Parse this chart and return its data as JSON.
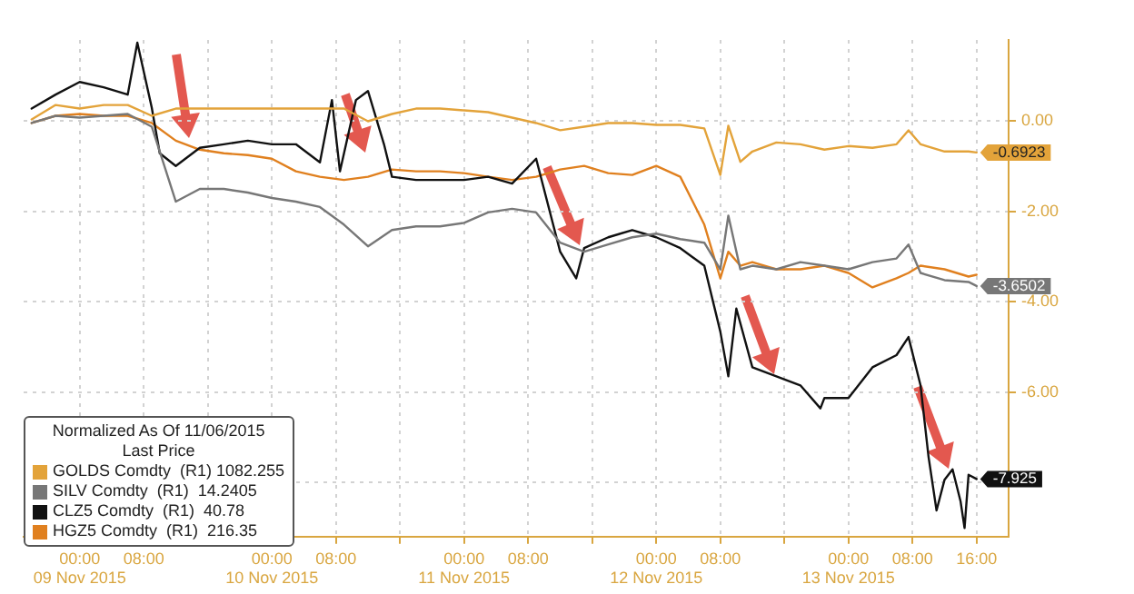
{
  "chart_data": {
    "type": "line",
    "legend_title": "Normalized As Of 11/06/2015\nLast Price",
    "legend": "bottom left",
    "grid": true,
    "marker": "none",
    "line_style": "solid",
    "xlim": [
      "2015-11-08T17:00",
      "2015-11-13T20:00"
    ],
    "xticks": [
      {
        "value": "2015-11-09T00:00",
        "label": "00:00\n09 Nov 2015"
      },
      {
        "value": "2015-11-09T08:00",
        "label": "08:00"
      },
      {
        "value": "2015-11-09T16:00",
        "label": null
      },
      {
        "value": "2015-11-10T00:00",
        "label": "00:00\n10 Nov 2015"
      },
      {
        "value": "2015-11-10T08:00",
        "label": "08:00"
      },
      {
        "value": "2015-11-10T16:00",
        "label": null
      },
      {
        "value": "2015-11-11T00:00",
        "label": "00:00\n11 Nov 2015"
      },
      {
        "value": "2015-11-11T08:00",
        "label": "08:00"
      },
      {
        "value": "2015-11-11T16:00",
        "label": null
      },
      {
        "value": "2015-11-12T00:00",
        "label": "00:00\n12 Nov 2015"
      },
      {
        "value": "2015-11-12T08:00",
        "label": "08:00"
      },
      {
        "value": "2015-11-12T16:00",
        "label": null
      },
      {
        "value": "2015-11-13T00:00",
        "label": "00:00\n13 Nov 2015"
      },
      {
        "value": "2015-11-13T08:00",
        "label": "08:00"
      },
      {
        "value": "2015-11-13T16:00",
        "label": "16:00"
      }
    ],
    "ylim": [
      -9.2,
      1.8
    ],
    "yticks": [
      {
        "value": 0,
        "label": "0.00"
      },
      {
        "value": -2,
        "label": "-2.00"
      },
      {
        "value": -4,
        "label": "-4.00"
      },
      {
        "value": -6,
        "label": "-6.00"
      },
      {
        "value": -8,
        "label": null
      }
    ],
    "series": [
      {
        "name": "GOLDS Comdty  (R1) 1082.255",
        "color": "#e3a33a",
        "x": [
          "2015-11-08T18:00",
          "2015-11-08T21:00",
          "2015-11-09T00:00",
          "2015-11-09T03:00",
          "2015-11-09T06:00",
          "2015-11-09T09:00",
          "2015-11-09T12:00",
          "2015-11-09T15:00",
          "2015-11-09T18:00",
          "2015-11-09T21:00",
          "2015-11-10T00:00",
          "2015-11-10T03:00",
          "2015-11-10T06:00",
          "2015-11-10T09:00",
          "2015-11-10T12:00",
          "2015-11-10T15:00",
          "2015-11-10T18:00",
          "2015-11-10T21:00",
          "2015-11-11T00:00",
          "2015-11-11T03:00",
          "2015-11-11T06:00",
          "2015-11-11T09:00",
          "2015-11-11T12:00",
          "2015-11-11T15:00",
          "2015-11-11T18:00",
          "2015-11-11T21:00",
          "2015-11-12T00:00",
          "2015-11-12T03:00",
          "2015-11-12T06:00",
          "2015-11-12T08:00",
          "2015-11-12T09:00",
          "2015-11-12T10:30",
          "2015-11-12T12:00",
          "2015-11-12T15:00",
          "2015-11-12T18:00",
          "2015-11-12T21:00",
          "2015-11-13T00:00",
          "2015-11-13T03:00",
          "2015-11-13T06:00",
          "2015-11-13T07:30",
          "2015-11-13T09:00",
          "2015-11-13T12:00",
          "2015-11-13T15:00",
          "2015-11-13T16:00"
        ],
        "values": [
          0.04,
          0.36,
          0.28,
          0.36,
          0.36,
          0.12,
          0.28,
          0.28,
          0.28,
          0.28,
          0.28,
          0.28,
          0.28,
          0.28,
          0,
          0.16,
          0.28,
          0.28,
          0.24,
          0.2,
          0.08,
          -0.04,
          -0.2,
          -0.12,
          -0.04,
          -0.04,
          -0.08,
          -0.08,
          -0.16,
          -1.19,
          -0.1,
          -0.9,
          -0.67,
          -0.47,
          -0.51,
          -0.63,
          -0.55,
          -0.59,
          -0.51,
          -0.2,
          -0.51,
          -0.67,
          -0.67,
          -0.6923
        ],
        "value_labels": [
          null,
          null,
          null,
          null,
          null,
          null,
          null,
          null,
          null,
          null,
          null,
          null,
          null,
          null,
          null,
          null,
          null,
          null,
          null,
          null,
          null,
          null,
          null,
          null,
          null,
          null,
          null,
          null,
          null,
          null,
          null,
          null,
          null,
          null,
          null,
          null,
          null,
          null,
          null,
          null,
          null,
          null,
          null,
          "-0.6923"
        ]
      },
      {
        "name": "SILV Comdty  (R1)  14.2405",
        "color": "#777777",
        "x": [
          "2015-11-08T18:00",
          "2015-11-08T21:00",
          "2015-11-09T00:00",
          "2015-11-09T03:00",
          "2015-11-09T06:00",
          "2015-11-09T09:00",
          "2015-11-09T12:00",
          "2015-11-09T15:00",
          "2015-11-09T18:00",
          "2015-11-09T21:00",
          "2015-11-10T00:00",
          "2015-11-10T03:00",
          "2015-11-10T06:00",
          "2015-11-10T09:00",
          "2015-11-10T12:00",
          "2015-11-10T15:00",
          "2015-11-10T18:00",
          "2015-11-10T21:00",
          "2015-11-11T00:00",
          "2015-11-11T03:00",
          "2015-11-11T06:00",
          "2015-11-11T09:00",
          "2015-11-11T12:00",
          "2015-11-11T15:00",
          "2015-11-11T18:00",
          "2015-11-11T21:00",
          "2015-11-12T00:00",
          "2015-11-12T03:00",
          "2015-11-12T06:00",
          "2015-11-12T08:00",
          "2015-11-12T09:00",
          "2015-11-12T10:30",
          "2015-11-12T12:00",
          "2015-11-12T15:00",
          "2015-11-12T18:00",
          "2015-11-12T21:00",
          "2015-11-13T00:00",
          "2015-11-13T03:00",
          "2015-11-13T06:00",
          "2015-11-13T07:30",
          "2015-11-13T09:00",
          "2015-11-13T12:00",
          "2015-11-13T15:00",
          "2015-11-13T16:00"
        ],
        "values": [
          -0.04,
          0.12,
          0.08,
          0.12,
          0.16,
          -0.12,
          -1.78,
          -1.5,
          -1.5,
          -1.58,
          -1.7,
          -1.78,
          -1.9,
          -2.29,
          -2.77,
          -2.41,
          -2.33,
          -2.33,
          -2.25,
          -2.02,
          -1.94,
          -2.02,
          -2.69,
          -2.89,
          -2.73,
          -2.57,
          -2.49,
          -2.61,
          -2.69,
          -3.28,
          -2.09,
          -3.28,
          -3.2,
          -3.28,
          -3.12,
          -3.2,
          -3.28,
          -3.12,
          -3.04,
          -2.73,
          -3.36,
          -3.52,
          -3.56,
          -3.6502
        ],
        "value_labels": [
          null,
          null,
          null,
          null,
          null,
          null,
          null,
          null,
          null,
          null,
          null,
          null,
          null,
          null,
          null,
          null,
          null,
          null,
          null,
          null,
          null,
          null,
          null,
          null,
          null,
          null,
          null,
          null,
          null,
          null,
          null,
          null,
          null,
          null,
          null,
          null,
          null,
          null,
          null,
          null,
          null,
          null,
          null,
          "-3.6502"
        ]
      },
      {
        "name": "CLZ5 Comdty  (R1)  40.78",
        "color": "#111111",
        "x": [
          "2015-11-08T18:00",
          "2015-11-08T21:00",
          "2015-11-09T00:00",
          "2015-11-09T03:00",
          "2015-11-09T06:00",
          "2015-11-09T07:12",
          "2015-11-09T09:00",
          "2015-11-09T10:00",
          "2015-11-09T12:00",
          "2015-11-09T15:00",
          "2015-11-09T18:00",
          "2015-11-09T21:00",
          "2015-11-10T00:00",
          "2015-11-10T03:00",
          "2015-11-10T06:00",
          "2015-11-10T07:30",
          "2015-11-10T08:30",
          "2015-11-10T10:30",
          "2015-11-10T12:00",
          "2015-11-10T14:00",
          "2015-11-10T15:00",
          "2015-11-10T18:00",
          "2015-11-10T21:00",
          "2015-11-11T00:00",
          "2015-11-11T03:00",
          "2015-11-11T06:00",
          "2015-11-11T09:00",
          "2015-11-11T12:00",
          "2015-11-11T14:00",
          "2015-11-11T15:00",
          "2015-11-11T18:00",
          "2015-11-11T21:00",
          "2015-11-12T00:00",
          "2015-11-12T03:00",
          "2015-11-12T06:00",
          "2015-11-12T08:00",
          "2015-11-12T09:00",
          "2015-11-12T10:00",
          "2015-11-12T12:00",
          "2015-11-12T15:00",
          "2015-11-12T18:00",
          "2015-11-12T20:30",
          "2015-11-12T21:00",
          "2015-11-13T00:00",
          "2015-11-13T03:00",
          "2015-11-13T06:00",
          "2015-11-13T07:30",
          "2015-11-13T09:00",
          "2015-11-13T10:00",
          "2015-11-13T11:00",
          "2015-11-13T12:00",
          "2015-11-13T13:00",
          "2015-11-13T14:00",
          "2015-11-13T14:30",
          "2015-11-13T15:00",
          "2015-11-13T16:00"
        ],
        "values": [
          0.28,
          0.59,
          0.87,
          0.75,
          0.59,
          1.74,
          0.3,
          -0.71,
          -0.99,
          -0.59,
          -0.51,
          -0.43,
          -0.51,
          -0.51,
          -0.91,
          0.47,
          -1.11,
          0.47,
          0.67,
          -0.51,
          -1.23,
          -1.3,
          -1.3,
          -1.3,
          -1.23,
          -1.38,
          -0.83,
          -2.89,
          -3.48,
          -2.81,
          -2.57,
          -2.41,
          -2.57,
          -2.81,
          -3.2,
          -4.66,
          -5.65,
          -4.15,
          -5.45,
          -5.65,
          -5.85,
          -6.36,
          -6.13,
          -6.13,
          -5.45,
          -5.18,
          -4.78,
          -5.85,
          -7.43,
          -8.62,
          -7.94,
          -7.71,
          -8.42,
          -9.01,
          -7.83,
          -7.925
        ],
        "value_labels": [
          null,
          null,
          null,
          null,
          null,
          null,
          null,
          null,
          null,
          null,
          null,
          null,
          null,
          null,
          null,
          null,
          null,
          null,
          null,
          null,
          null,
          null,
          null,
          null,
          null,
          null,
          null,
          null,
          null,
          null,
          null,
          null,
          null,
          null,
          null,
          null,
          null,
          null,
          null,
          null,
          null,
          null,
          null,
          null,
          null,
          null,
          null,
          null,
          null,
          null,
          null,
          null,
          null,
          null,
          null,
          "-7.925"
        ]
      },
      {
        "name": "HGZ5 Comdty  (R1)  216.35",
        "color": "#e0801f",
        "x": [
          "2015-11-08T18:00",
          "2015-11-08T21:00",
          "2015-11-09T00:00",
          "2015-11-09T03:00",
          "2015-11-09T06:00",
          "2015-11-09T09:00",
          "2015-11-09T12:00",
          "2015-11-09T15:00",
          "2015-11-09T18:00",
          "2015-11-09T21:00",
          "2015-11-10T00:00",
          "2015-11-10T03:00",
          "2015-11-10T06:00",
          "2015-11-10T09:00",
          "2015-11-10T12:00",
          "2015-11-10T15:00",
          "2015-11-10T18:00",
          "2015-11-10T21:00",
          "2015-11-11T00:00",
          "2015-11-11T03:00",
          "2015-11-11T06:00",
          "2015-11-11T09:00",
          "2015-11-11T12:00",
          "2015-11-11T15:00",
          "2015-11-11T18:00",
          "2015-11-11T21:00",
          "2015-11-12T00:00",
          "2015-11-12T03:00",
          "2015-11-12T06:00",
          "2015-11-12T08:00",
          "2015-11-12T09:00",
          "2015-11-12T10:30",
          "2015-11-12T12:00",
          "2015-11-12T15:00",
          "2015-11-12T18:00",
          "2015-11-12T21:00",
          "2015-11-13T00:00",
          "2015-11-13T03:00",
          "2015-11-13T06:00",
          "2015-11-13T07:30",
          "2015-11-13T09:00",
          "2015-11-13T12:00",
          "2015-11-13T15:00",
          "2015-11-13T16:00"
        ],
        "values": [
          -0.04,
          0.12,
          0.16,
          0.12,
          0.12,
          -0.04,
          -0.43,
          -0.63,
          -0.71,
          -0.75,
          -0.83,
          -1.11,
          -1.23,
          -1.3,
          -1.23,
          -1.07,
          -1.11,
          -1.11,
          -1.15,
          -1.23,
          -1.3,
          -1.23,
          -1.07,
          -0.99,
          -1.15,
          -1.19,
          -0.99,
          -1.23,
          -2.29,
          -3.48,
          -2.89,
          -3.2,
          -3.12,
          -3.28,
          -3.28,
          -3.2,
          -3.36,
          -3.68,
          -3.48,
          -3.36,
          -3.2,
          -3.28,
          -3.44,
          -3.4
        ]
      }
    ]
  }
}
